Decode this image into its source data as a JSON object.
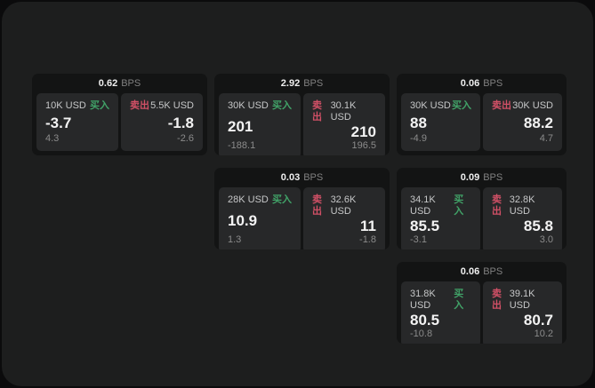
{
  "unit_label": "BPS",
  "buy_label": "买入",
  "sell_label": "卖出",
  "colors": {
    "background": "#0b0b0c",
    "panel": "#1d1e1e",
    "card": "#131414",
    "pane": "#272829",
    "buy": "#41a368",
    "sell": "#d15066"
  },
  "cards": [
    {
      "row": 1,
      "col": 1,
      "bps": "0.62",
      "buy": {
        "size": "10K USD",
        "value": "-3.7",
        "delta": "4.3"
      },
      "sell": {
        "size": "5.5K USD",
        "value": "-1.8",
        "delta": "-2.6"
      }
    },
    {
      "row": 1,
      "col": 2,
      "bps": "2.92",
      "buy": {
        "size": "30K USD",
        "value": "201",
        "delta": "-188.1"
      },
      "sell": {
        "size": "30.1K USD",
        "value": "210",
        "delta": "196.5"
      }
    },
    {
      "row": 1,
      "col": 3,
      "bps": "0.06",
      "buy": {
        "size": "30K USD",
        "value": "88",
        "delta": "-4.9"
      },
      "sell": {
        "size": "30K USD",
        "value": "88.2",
        "delta": "4.7"
      }
    },
    {
      "row": 2,
      "col": 2,
      "bps": "0.03",
      "buy": {
        "size": "28K USD",
        "value": "10.9",
        "delta": "1.3"
      },
      "sell": {
        "size": "32.6K USD",
        "value": "11",
        "delta": "-1.8"
      }
    },
    {
      "row": 2,
      "col": 3,
      "bps": "0.09",
      "buy": {
        "size": "34.1K USD",
        "value": "85.5",
        "delta": "-3.1"
      },
      "sell": {
        "size": "32.8K USD",
        "value": "85.8",
        "delta": "3.0"
      }
    },
    {
      "row": 3,
      "col": 3,
      "bps": "0.06",
      "buy": {
        "size": "31.8K USD",
        "value": "80.5",
        "delta": "-10.8"
      },
      "sell": {
        "size": "39.1K USD",
        "value": "80.7",
        "delta": "10.2"
      }
    }
  ]
}
